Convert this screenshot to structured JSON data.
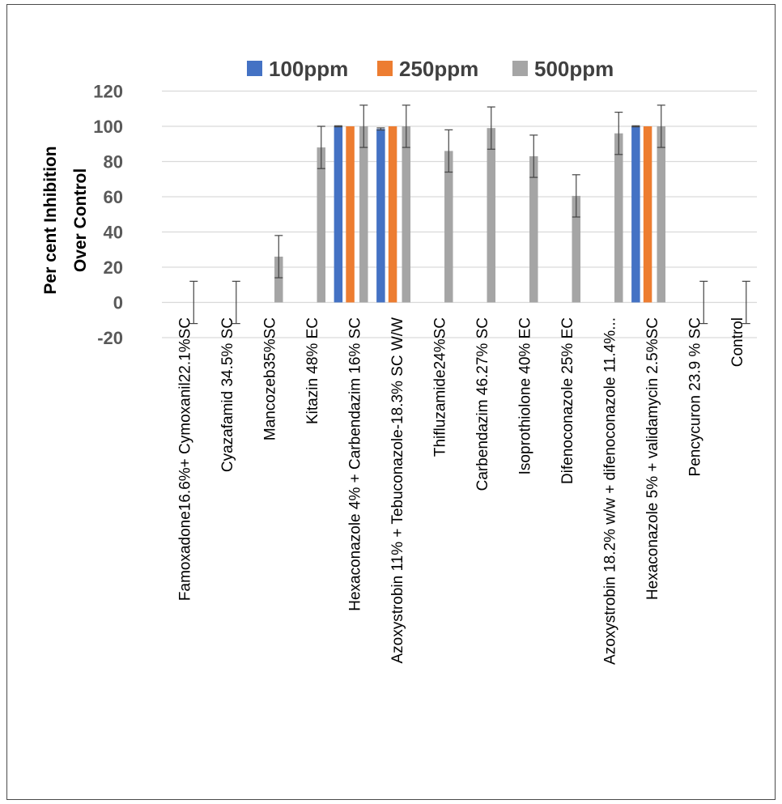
{
  "chart_data": {
    "type": "bar",
    "title": "",
    "ylabel": [
      "Per cent Inhibition",
      "Over Control"
    ],
    "xlabel": "",
    "ylim": [
      -20,
      120
    ],
    "yticks": [
      -20,
      0,
      20,
      40,
      60,
      80,
      100,
      120
    ],
    "grid": true,
    "legend_position": "top",
    "categories": [
      "Famoxadone16.6%+ Cymoxanil22.1%SC",
      "Cyazafamid 34.5% SC",
      "Mancozeb35%SC",
      "Kitazin 48% EC",
      "Hexaconazole 4% + Carbendazim 16% SC",
      "Azoxystrobin 11% + Tebuconazole-18.3% SC W/W",
      "Thifluzamide24%SC",
      "Carbendazim 46.27% SC",
      "Isoprothiolone 40% EC",
      "Difenoconazole 25% EC",
      "Azoxystrobin 18.2% w/w + difenoconazole 11.4%...",
      "Hexaconazole 5% + validamycin 2.5%SC",
      "Pencycuron 23.9 % SC",
      "Control"
    ],
    "series": [
      {
        "name": "100ppm",
        "color": "#4472C4",
        "values": [
          0,
          0,
          0,
          0,
          100,
          98.5,
          0,
          0,
          0,
          0,
          0,
          100,
          0,
          0
        ],
        "errors": [
          0,
          0,
          0,
          0,
          0.3,
          0.6,
          0,
          0,
          0,
          0,
          0,
          0.3,
          0,
          0
        ]
      },
      {
        "name": "250ppm",
        "color": "#ED7D31",
        "values": [
          0,
          0,
          0,
          0,
          100,
          100,
          0,
          0,
          0,
          0,
          0,
          100,
          0,
          0
        ],
        "errors": [
          0,
          0,
          0,
          0,
          0,
          0,
          0,
          0,
          0,
          0,
          0,
          0,
          0,
          0
        ]
      },
      {
        "name": "500ppm",
        "color": "#A5A5A5",
        "values": [
          0,
          0,
          26,
          88,
          100,
          100,
          86,
          99,
          83,
          60.5,
          96,
          100,
          0,
          0
        ],
        "errors": [
          12,
          12,
          12,
          12,
          12,
          12,
          12,
          12,
          12,
          12,
          12,
          12,
          12,
          12
        ]
      }
    ]
  }
}
